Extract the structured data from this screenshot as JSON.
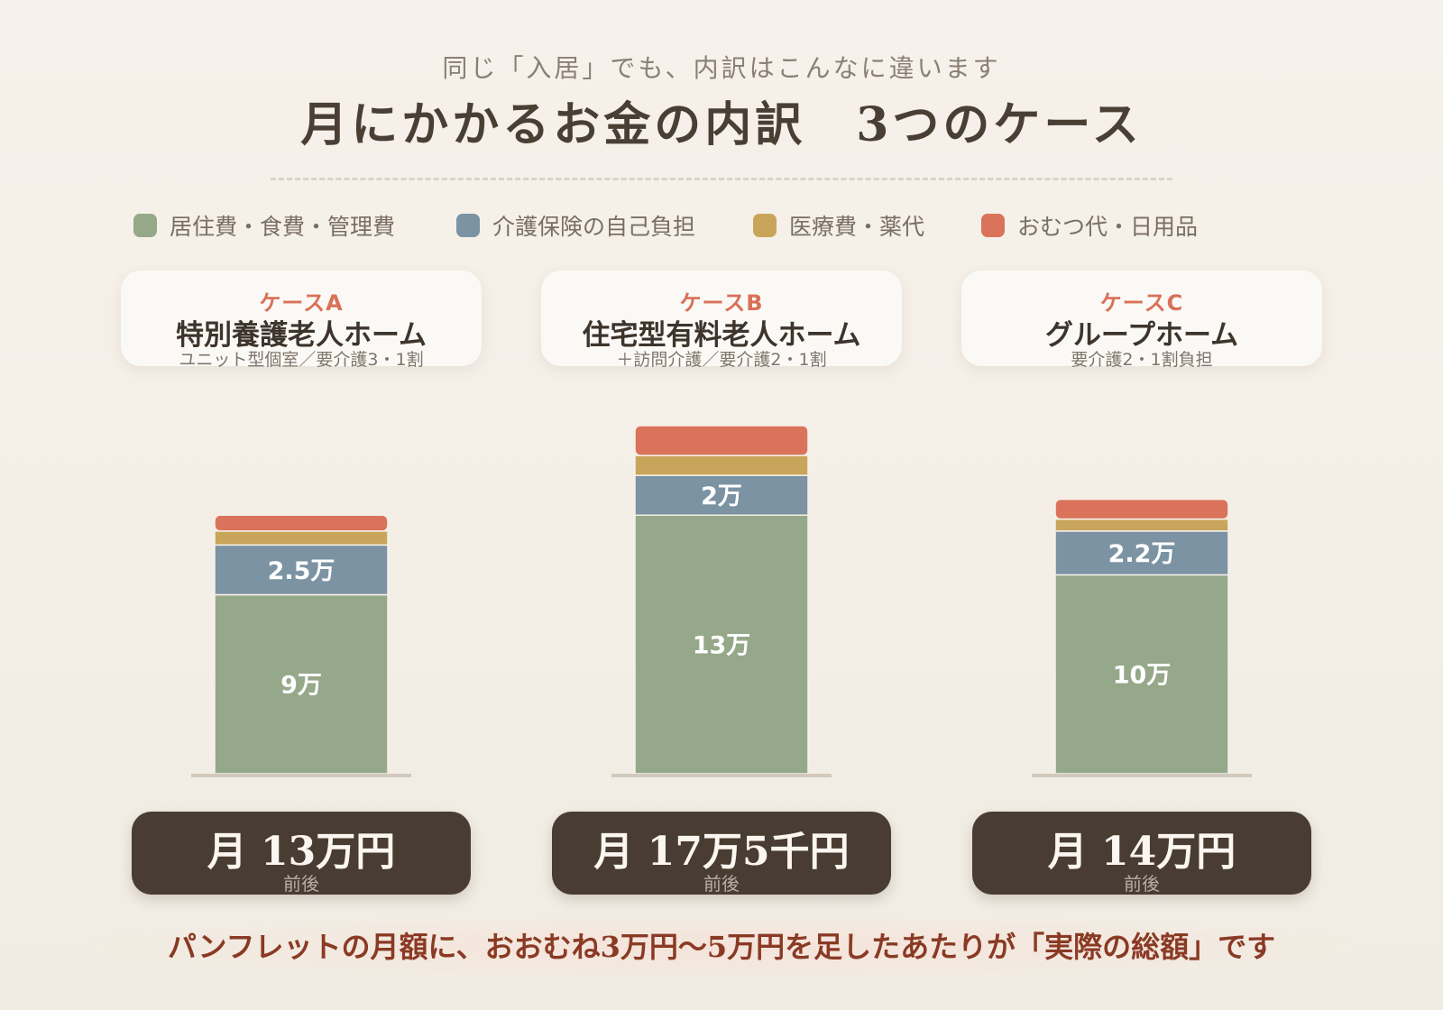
{
  "header": {
    "subtitle": "同じ「入居」でも、内訳はこんなに違います",
    "title": "月にかかるお金の内訳　3つのケース"
  },
  "colors": {
    "housing": "#96a88a",
    "care": "#7b93a3",
    "medical": "#c9a55c",
    "diapers": "#d9745a",
    "accent": "#d87158",
    "dark": "#493d33"
  },
  "legend": [
    {
      "label": "居住費・食費・管理費",
      "color": "#96a88a"
    },
    {
      "label": "介護保険の自己負担",
      "color": "#7b93a3"
    },
    {
      "label": "医療費・薬代",
      "color": "#c9a55c"
    },
    {
      "label": "おむつ代・日用品",
      "color": "#d9745a"
    }
  ],
  "cases": [
    {
      "label": "ケースA",
      "facility": "特別養護老人ホーム",
      "detail": "ユニット型個室／要介護3・1割",
      "total": "月 13万円",
      "total_note": "前後"
    },
    {
      "label": "ケースB",
      "facility": "住宅型有料老人ホーム",
      "detail": "＋訪問介護／要介護2・1割",
      "total": "月 17万5千円",
      "total_note": "前後"
    },
    {
      "label": "ケースC",
      "facility": "グループホーム",
      "detail": "要介護2・1割負担",
      "total": "月 14万円",
      "total_note": "前後"
    }
  ],
  "chart_data": {
    "type": "bar",
    "stacked": true,
    "unit": "万円",
    "categories": [
      "ケースA",
      "ケースB",
      "ケースC"
    ],
    "series": [
      {
        "name": "居住費・食費・管理費",
        "values": [
          9,
          13,
          10
        ],
        "labels": [
          "9万",
          "13万",
          "10万"
        ]
      },
      {
        "name": "介護保険の自己負担",
        "values": [
          2.5,
          2,
          2.2
        ],
        "labels": [
          "2.5万",
          "2万",
          "2.2万"
        ]
      },
      {
        "name": "医療費・薬代",
        "values": [
          0.7,
          1,
          0.6
        ],
        "labels": [
          "",
          "",
          ""
        ]
      },
      {
        "name": "おむつ代・日用品",
        "values": [
          0.8,
          1.5,
          1.0
        ],
        "labels": [
          "",
          "",
          ""
        ]
      }
    ],
    "ylim": [
      0,
      17.5
    ],
    "grid": false,
    "legend_position": "top"
  },
  "footnote": "パンフレットの月額に、おおむね3万円〜5万円を足したあたりが「実際の総額」です"
}
